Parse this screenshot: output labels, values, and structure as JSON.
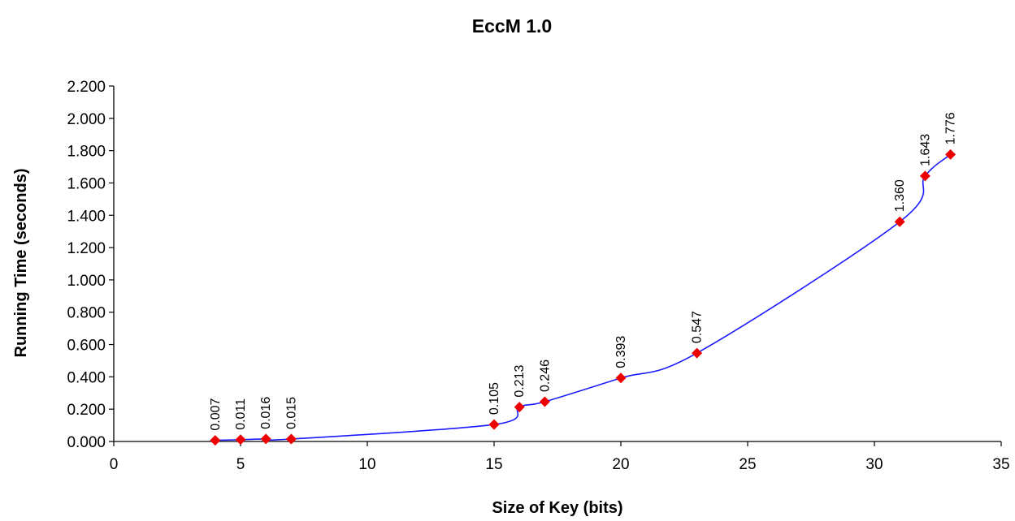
{
  "chart_data": {
    "type": "line",
    "title": "EccM 1.0",
    "xlabel": "Size of Key (bits)",
    "ylabel": "Running Time (seconds)",
    "xlim": [
      0,
      35
    ],
    "ylim": [
      0,
      2.2
    ],
    "x_ticks": [
      "0",
      "5",
      "10",
      "15",
      "20",
      "25",
      "30",
      "35"
    ],
    "y_ticks": [
      "0.000",
      "0.200",
      "0.400",
      "0.600",
      "0.800",
      "1.000",
      "1.200",
      "1.400",
      "1.600",
      "1.800",
      "2.000",
      "2.200"
    ],
    "grid": false,
    "legend": "none",
    "line_color": "#1a1aff",
    "marker_color": "#ee0000",
    "marker": "diamond",
    "series": [
      {
        "x": [
          4,
          5,
          6,
          7,
          15,
          16,
          17,
          20,
          23,
          31,
          32,
          33
        ],
        "y": [
          0.007,
          0.011,
          0.016,
          0.015,
          0.105,
          0.213,
          0.246,
          0.393,
          0.547,
          1.36,
          1.643,
          1.776
        ],
        "labels": [
          "0.007",
          "0.011",
          "0.016",
          "0.015",
          "0.105",
          "0.213",
          "0.246",
          "0.393",
          "0.547",
          "1.360",
          "1.643",
          "1.776"
        ]
      }
    ]
  }
}
